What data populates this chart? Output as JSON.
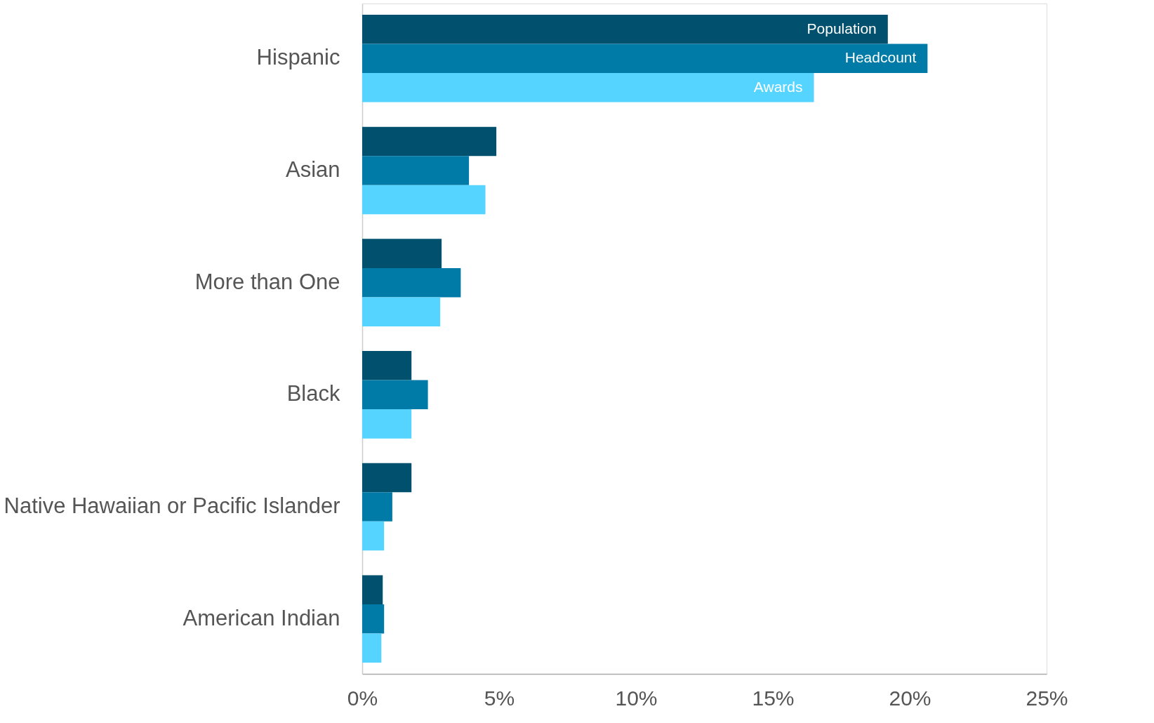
{
  "chart_data": {
    "type": "bar",
    "orientation": "horizontal",
    "categories": [
      "Hispanic",
      "Asian",
      "More than One",
      "Black",
      "Native Hawaiian or Pacific Islander",
      "American Indian"
    ],
    "series": [
      {
        "name": "Population",
        "color": "#00506e",
        "values": [
          19.2,
          4.9,
          2.9,
          1.8,
          1.8,
          0.75
        ]
      },
      {
        "name": "Headcount",
        "color": "#007ba7",
        "values": [
          20.65,
          3.9,
          3.6,
          2.4,
          1.1,
          0.8
        ]
      },
      {
        "name": "Awards",
        "color": "#54d4ff",
        "values": [
          16.5,
          4.5,
          2.85,
          1.8,
          0.8,
          0.7
        ]
      }
    ],
    "xlim": [
      0,
      25
    ],
    "xticks": [
      {
        "value": 0,
        "label": "0%"
      },
      {
        "value": 5,
        "label": "5%"
      },
      {
        "value": 10,
        "label": "10%"
      },
      {
        "value": 15,
        "label": "15%"
      },
      {
        "value": 20,
        "label": "20%"
      },
      {
        "value": 25,
        "label": "25%"
      }
    ],
    "grid": false,
    "legend": false
  }
}
